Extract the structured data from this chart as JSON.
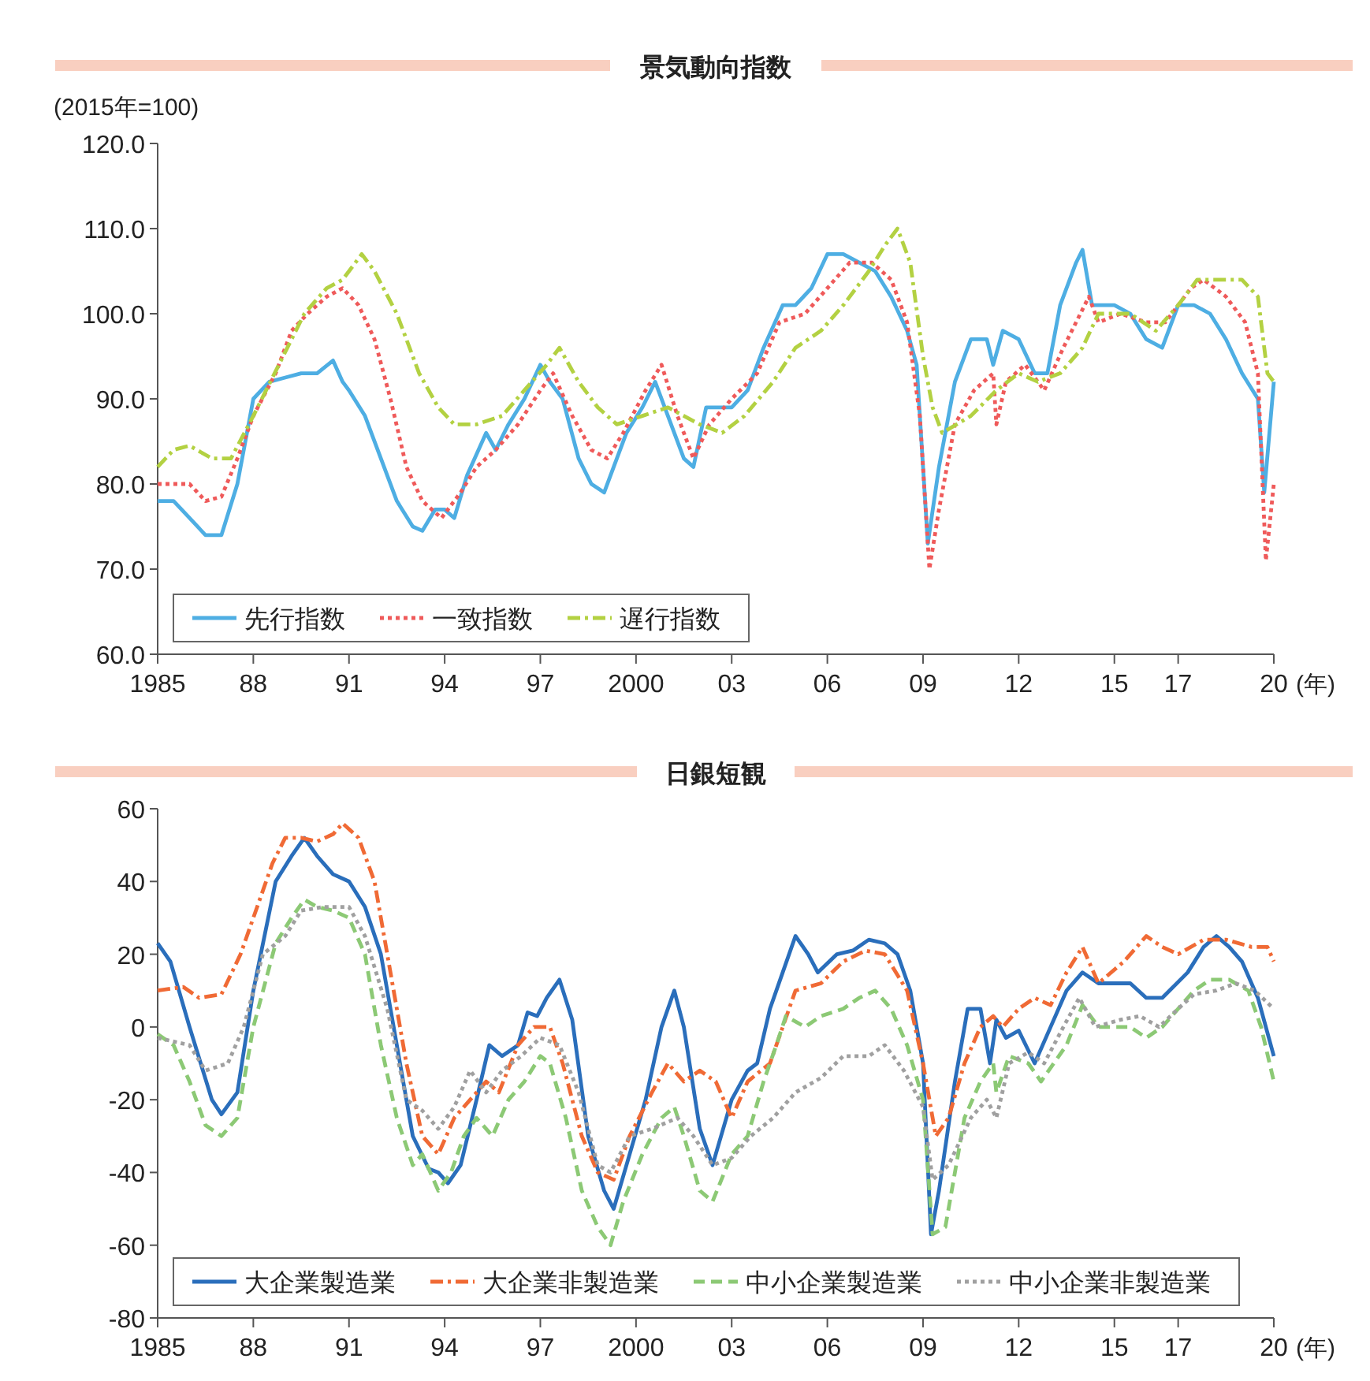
{
  "chart_data": [
    {
      "type": "line",
      "title": "景気動向指数",
      "ylabel": "(2015年=100)",
      "xlabel": "(年)",
      "legend": "bottom left",
      "xlim": [
        1985,
        2020
      ],
      "ylim": [
        60,
        120
      ],
      "xticks": [
        {
          "value": 1985,
          "label": "1985"
        },
        {
          "value": 1988,
          "label": "88"
        },
        {
          "value": 1991,
          "label": "91"
        },
        {
          "value": 1994,
          "label": "94"
        },
        {
          "value": 1997,
          "label": "97"
        },
        {
          "value": 2000,
          "label": "2000"
        },
        {
          "value": 2003,
          "label": "03"
        },
        {
          "value": 2006,
          "label": "06"
        },
        {
          "value": 2009,
          "label": "09"
        },
        {
          "value": 2012,
          "label": "12"
        },
        {
          "value": 2015,
          "label": "15"
        },
        {
          "value": 2017,
          "label": "17"
        },
        {
          "value": 2020,
          "label": "20"
        }
      ],
      "yticks": [
        {
          "value": 60,
          "label": "60.0"
        },
        {
          "value": 70,
          "label": "70.0"
        },
        {
          "value": 80,
          "label": "80.0"
        },
        {
          "value": 90,
          "label": "90.0"
        },
        {
          "value": 100,
          "label": "100.0"
        },
        {
          "value": 110,
          "label": "110.0"
        },
        {
          "value": 120,
          "label": "120.0"
        }
      ],
      "series": [
        {
          "name": "先行指数",
          "color": "#4eaee3",
          "line_style": "solid",
          "x": [
            1985,
            1985.5,
            1986,
            1986.5,
            1987,
            1987.5,
            1988,
            1988.5,
            1989,
            1989.5,
            1990,
            1990.5,
            1990.8,
            1991,
            1991.5,
            1992,
            1992.5,
            1993,
            1993.3,
            1993.7,
            1994,
            1994.3,
            1994.7,
            1995.3,
            1995.6,
            1996,
            1996.5,
            1997,
            1997.3,
            1997.7,
            1998.2,
            1998.6,
            1999,
            1999.3,
            1999.7,
            2000.2,
            2000.6,
            2001,
            2001.5,
            2001.8,
            2002.2,
            2003,
            2003.5,
            2004,
            2004.6,
            2005,
            2005.5,
            2006,
            2006.5,
            2007,
            2007.5,
            2008,
            2008.5,
            2008.8,
            2009,
            2009.15,
            2009.5,
            2010,
            2010.5,
            2011,
            2011.2,
            2011.5,
            2012,
            2012.5,
            2012.9,
            2013.3,
            2013.8,
            2014,
            2014.3,
            2015,
            2015.5,
            2016,
            2016.5,
            2017,
            2017.5,
            2018,
            2018.5,
            2019,
            2019.5,
            2019.7,
            2020
          ],
          "values": [
            78,
            78,
            76,
            74,
            74,
            80,
            90,
            92,
            92.5,
            93,
            93,
            94.5,
            92,
            91,
            88,
            83,
            78,
            75,
            74.5,
            77,
            77,
            76,
            81,
            86,
            84,
            87,
            90,
            94,
            92,
            90,
            83,
            80,
            79,
            82,
            86,
            89,
            92,
            88,
            83,
            82,
            89,
            89,
            91,
            96,
            101,
            101,
            103,
            107,
            107,
            106,
            105,
            102,
            98,
            94,
            82,
            73,
            82,
            92,
            97,
            97,
            94,
            98,
            97,
            93,
            93,
            101,
            106,
            107.5,
            101,
            101,
            100,
            97,
            96,
            101,
            101,
            100,
            97,
            93,
            90,
            79,
            92
          ]
        },
        {
          "name": "一致指数",
          "color": "#ef5a5a",
          "line_style": "dotted",
          "x": [
            1985,
            1986,
            1986.5,
            1987,
            1987.5,
            1988,
            1988.7,
            1989.2,
            1989.7,
            1990.3,
            1990.8,
            1991.3,
            1991.8,
            1992.3,
            1992.8,
            1993.3,
            1993.9,
            1994.5,
            1995,
            1995.6,
            1996.3,
            1997,
            1997.4,
            1998,
            1998.6,
            1999.1,
            1999.6,
            2000.3,
            2000.8,
            2001.3,
            2001.8,
            2002.3,
            2003,
            2003.8,
            2004.5,
            2005.3,
            2006,
            2006.7,
            2007.4,
            2008,
            2008.5,
            2008.9,
            2009.2,
            2009.5,
            2010,
            2010.6,
            2011.2,
            2011.3,
            2011.6,
            2012.2,
            2012.8,
            2013.4,
            2014.2,
            2014.5,
            2015.2,
            2016,
            2016.6,
            2017.4,
            2017.8,
            2018.5,
            2019.1,
            2019.5,
            2019.75,
            2020
          ],
          "values": [
            80,
            80,
            78,
            78.5,
            83,
            88,
            93,
            98,
            100,
            102,
            103,
            101,
            97,
            90,
            82,
            78,
            76,
            79,
            82,
            84,
            87,
            91,
            93,
            88,
            84,
            83,
            86,
            91,
            94,
            88,
            83,
            87,
            90,
            93,
            99,
            100,
            103,
            106,
            106,
            104,
            99,
            88,
            70,
            77,
            87,
            91,
            93,
            87,
            92,
            94,
            91,
            96,
            102,
            99,
            100,
            99,
            99,
            103,
            104,
            102,
            99,
            93,
            71,
            80
          ]
        },
        {
          "name": "遅行指数",
          "color": "#b3d142",
          "line_style": "dashdot",
          "x": [
            1985,
            1985.5,
            1986,
            1986.7,
            1987.3,
            1988,
            1988.8,
            1989.6,
            1990.3,
            1990.8,
            1991.4,
            1991.8,
            1992.5,
            1993.2,
            1993.8,
            1994.3,
            1995,
            1995.8,
            1996.5,
            1997.2,
            1997.6,
            1998.2,
            1998.8,
            1999.4,
            2000.2,
            2001,
            2001.5,
            2002,
            2002.7,
            2003.4,
            2004.3,
            2005,
            2005.8,
            2006.5,
            2007.3,
            2007.8,
            2008.2,
            2008.6,
            2009,
            2009.3,
            2009.6,
            2010.5,
            2011.3,
            2012,
            2012.6,
            2013.3,
            2014,
            2014.5,
            2015.5,
            2016.3,
            2017,
            2017.6,
            2018.3,
            2019,
            2019.5,
            2019.8,
            2020
          ],
          "values": [
            82,
            84,
            84.5,
            83,
            83,
            88,
            94,
            100,
            103,
            104,
            107,
            105,
            100,
            93,
            89,
            87,
            87,
            88,
            91,
            94,
            96,
            92,
            89,
            87,
            88,
            89,
            88,
            87,
            86,
            88,
            92,
            96,
            98,
            101,
            105,
            108,
            110,
            106,
            95,
            89,
            86,
            88,
            91,
            93,
            92,
            93,
            96,
            100,
            100,
            98,
            101,
            104,
            104,
            104,
            102,
            93,
            92
          ]
        }
      ]
    },
    {
      "type": "line",
      "title": "日銀短観",
      "xlabel": "(年)",
      "legend": "bottom left",
      "xlim": [
        1985,
        2020
      ],
      "ylim": [
        -80,
        60
      ],
      "xticks": [
        {
          "value": 1985,
          "label": "1985"
        },
        {
          "value": 1988,
          "label": "88"
        },
        {
          "value": 1991,
          "label": "91"
        },
        {
          "value": 1994,
          "label": "94"
        },
        {
          "value": 1997,
          "label": "97"
        },
        {
          "value": 2000,
          "label": "2000"
        },
        {
          "value": 2003,
          "label": "03"
        },
        {
          "value": 2006,
          "label": "06"
        },
        {
          "value": 2009,
          "label": "09"
        },
        {
          "value": 2012,
          "label": "12"
        },
        {
          "value": 2015,
          "label": "15"
        },
        {
          "value": 2017,
          "label": "17"
        },
        {
          "value": 2020,
          "label": "20"
        }
      ],
      "yticks": [
        -80,
        -60,
        -40,
        -20,
        0,
        20,
        40,
        60
      ],
      "series": [
        {
          "name": "大企業製造業",
          "color": "#2a6ebb",
          "line_style": "solid",
          "x": [
            1985,
            1985.4,
            1986,
            1986.7,
            1987,
            1987.5,
            1988,
            1988.7,
            1989.2,
            1989.6,
            1990,
            1990.5,
            1991,
            1991.5,
            1992,
            1992.5,
            1993,
            1993.5,
            1993.8,
            1994.1,
            1994.5,
            1995,
            1995.4,
            1995.8,
            1996.3,
            1996.6,
            1996.9,
            1997.2,
            1997.6,
            1998,
            1998.5,
            1999,
            1999.3,
            1999.8,
            2000.3,
            2000.8,
            2001.2,
            2001.5,
            2002,
            2002.4,
            2003,
            2003.5,
            2003.8,
            2004.2,
            2004.6,
            2005,
            2005.4,
            2005.7,
            2006.3,
            2006.8,
            2007.3,
            2007.8,
            2008.2,
            2008.6,
            2009,
            2009.25,
            2009.5,
            2010,
            2010.4,
            2010.8,
            2011.1,
            2011.3,
            2011.6,
            2012,
            2012.5,
            2013,
            2013.5,
            2014,
            2014.5,
            2015.5,
            2016,
            2016.5,
            2017.3,
            2017.8,
            2018.2,
            2018.6,
            2019,
            2019.5,
            2020
          ],
          "values": [
            23,
            18,
            0,
            -20,
            -24,
            -18,
            10,
            40,
            47,
            52,
            47,
            42,
            40,
            33,
            20,
            -5,
            -30,
            -39,
            -40,
            -43,
            -38,
            -20,
            -5,
            -8,
            -5,
            4,
            3,
            8,
            13,
            2,
            -30,
            -45,
            -50,
            -35,
            -20,
            0,
            10,
            0,
            -28,
            -38,
            -20,
            -12,
            -10,
            5,
            15,
            25,
            20,
            15,
            20,
            21,
            24,
            23,
            20,
            10,
            -10,
            -57,
            -45,
            -15,
            5,
            5,
            -10,
            2,
            -3,
            -1,
            -10,
            0,
            10,
            15,
            12,
            12,
            8,
            8,
            15,
            22,
            25,
            22,
            18,
            8,
            -8
          ]
        },
        {
          "name": "大企業非製造業",
          "color": "#f06a35",
          "line_style": "dashdot",
          "x": [
            1985,
            1985.8,
            1986.3,
            1987,
            1987.6,
            1988.2,
            1988.6,
            1989,
            1989.5,
            1990,
            1990.5,
            1990.8,
            1991.3,
            1991.8,
            1992.3,
            1992.8,
            1993.3,
            1993.8,
            1994.3,
            1994.8,
            1995.3,
            1995.7,
            1996.3,
            1996.8,
            1997.3,
            1997.7,
            1998.3,
            1998.8,
            1999.3,
            1999.8,
            2000.5,
            2001,
            2001.5,
            2002,
            2002.5,
            2003,
            2003.5,
            2004.2,
            2004.6,
            2005,
            2005.8,
            2006.5,
            2007.2,
            2007.8,
            2008.5,
            2009,
            2009.4,
            2009.8,
            2010.3,
            2010.8,
            2011.2,
            2011.5,
            2012,
            2012.5,
            2013,
            2013.5,
            2014,
            2014.5,
            2015.3,
            2016,
            2016.5,
            2017,
            2017.8,
            2018.5,
            2019.3,
            2019.8,
            2020
          ],
          "values": [
            10,
            11,
            8,
            9,
            20,
            35,
            45,
            52,
            52,
            51,
            53,
            56,
            52,
            40,
            15,
            -10,
            -30,
            -35,
            -25,
            -20,
            -15,
            -18,
            -5,
            0,
            0,
            -10,
            -30,
            -40,
            -42,
            -30,
            -18,
            -10,
            -15,
            -12,
            -15,
            -25,
            -15,
            -10,
            0,
            10,
            12,
            18,
            21,
            20,
            10,
            -10,
            -30,
            -25,
            -10,
            0,
            3,
            0,
            5,
            8,
            6,
            15,
            22,
            12,
            18,
            25,
            22,
            20,
            24,
            24,
            22,
            22,
            18
          ]
        },
        {
          "name": "中小企業製造業",
          "color": "#8cc975",
          "line_style": "dashed",
          "x": [
            1985,
            1985.5,
            1986,
            1986.5,
            1987,
            1987.5,
            1988,
            1988.7,
            1989.2,
            1989.6,
            1990,
            1990.5,
            1991,
            1991.5,
            1992,
            1992.5,
            1993,
            1993.3,
            1993.8,
            1994.2,
            1994.6,
            1995,
            1995.5,
            1996,
            1996.5,
            1997,
            1997.3,
            1997.8,
            1998.3,
            1998.8,
            1999.2,
            1999.6,
            2000.2,
            2000.8,
            2001.2,
            2001.5,
            2002,
            2002.4,
            2003,
            2003.5,
            2004,
            2004.4,
            2004.7,
            2005.3,
            2005.8,
            2006.5,
            2007,
            2007.5,
            2008,
            2008.5,
            2009,
            2009.3,
            2009.7,
            2010.3,
            2010.8,
            2011.2,
            2011.3,
            2011.7,
            2012.3,
            2012.7,
            2013.5,
            2014,
            2014.5,
            2015.5,
            2016,
            2016.5,
            2017,
            2017.5,
            2018,
            2018.6,
            2019.2,
            2019.6,
            2020
          ],
          "values": [
            -2,
            -5,
            -15,
            -27,
            -30,
            -25,
            0,
            23,
            30,
            35,
            33,
            32,
            30,
            20,
            -5,
            -25,
            -38,
            -35,
            -45,
            -40,
            -30,
            -25,
            -30,
            -20,
            -15,
            -8,
            -10,
            -25,
            -45,
            -55,
            -60,
            -48,
            -35,
            -25,
            -22,
            -30,
            -45,
            -48,
            -35,
            -30,
            -15,
            -5,
            3,
            0,
            3,
            5,
            8,
            10,
            5,
            -5,
            -20,
            -57,
            -55,
            -25,
            -15,
            -10,
            -18,
            -8,
            -10,
            -15,
            -5,
            6,
            0,
            0,
            -3,
            0,
            5,
            10,
            13,
            13,
            10,
            0,
            -15
          ]
        },
        {
          "name": "中小企業非製造業",
          "color": "#a0a0a0",
          "line_style": "dotted",
          "x": [
            1985,
            1986,
            1986.5,
            1987.2,
            1987.7,
            1988.3,
            1989,
            1989.5,
            1990.2,
            1991,
            1991.5,
            1992.2,
            1992.8,
            1993.3,
            1993.8,
            1994.3,
            1994.8,
            1995.3,
            1995.8,
            1996.4,
            1997,
            1997.6,
            1998.2,
            1998.8,
            1999.2,
            1999.8,
            2000.5,
            2001.3,
            2001.8,
            2002.4,
            2003,
            2003.6,
            2004.3,
            2005,
            2005.8,
            2006.5,
            2007.3,
            2007.8,
            2008.4,
            2009,
            2009.3,
            2009.8,
            2010.5,
            2011,
            2011.3,
            2011.7,
            2012.3,
            2012.8,
            2013.4,
            2013.9,
            2014.4,
            2015.2,
            2015.8,
            2016.4,
            2017,
            2017.5,
            2018.2,
            2018.8,
            2019.4,
            2020
          ],
          "values": [
            -3,
            -5,
            -12,
            -10,
            0,
            20,
            25,
            32,
            33,
            33,
            25,
            5,
            -20,
            -23,
            -28,
            -22,
            -12,
            -18,
            -12,
            -8,
            -3,
            -5,
            -18,
            -38,
            -40,
            -30,
            -28,
            -25,
            -30,
            -38,
            -36,
            -30,
            -25,
            -18,
            -14,
            -8,
            -8,
            -5,
            -12,
            -22,
            -42,
            -38,
            -25,
            -20,
            -25,
            -10,
            -7,
            -10,
            0,
            8,
            0,
            2,
            3,
            0,
            5,
            9,
            10,
            12,
            10,
            5
          ]
        }
      ]
    }
  ]
}
